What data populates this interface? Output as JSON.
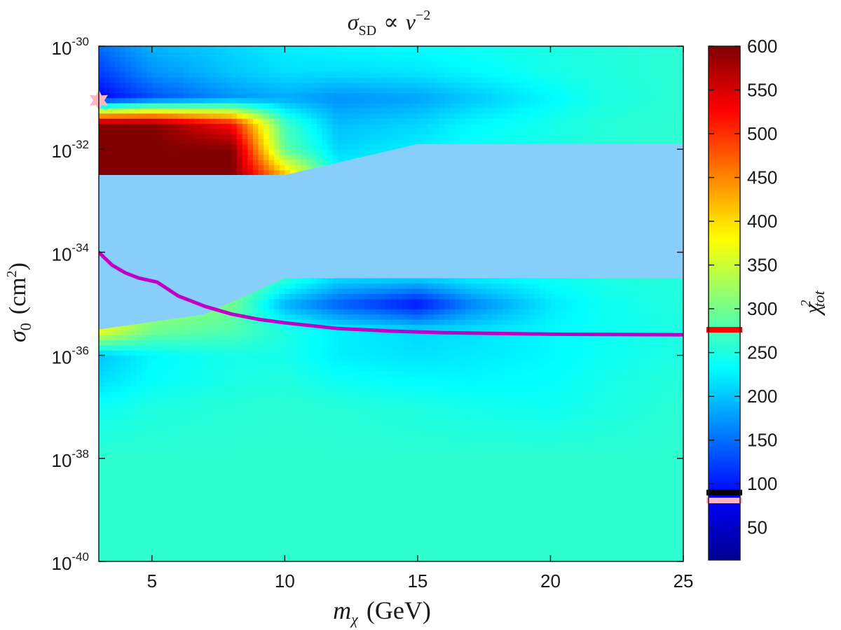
{
  "chart_data": {
    "type": "heatmap",
    "title": {
      "symbol": "σ",
      "subscript": "SD",
      "relation": "∝",
      "var": "v",
      "exponent": "−2"
    },
    "xlabel": {
      "symbol": "m",
      "subscript": "χ",
      "unit": "(GeV)"
    },
    "ylabel": {
      "symbol": "σ",
      "subscript": "0",
      "unit_open": "(cm",
      "unit_exp": "2",
      "unit_close": ")"
    },
    "colorbar_label": {
      "symbol": "χ",
      "superscript": "2",
      "subscript": "tot"
    },
    "xlim": [
      3,
      25
    ],
    "ylim_log10": [
      -40,
      -30
    ],
    "x_ticks": [
      5,
      10,
      15,
      20,
      25
    ],
    "x_tick_labels": [
      "5",
      "10",
      "15",
      "20",
      "25"
    ],
    "y_ticks_log10": [
      -40,
      -38,
      -36,
      -34,
      -32,
      -30
    ],
    "y_tick_base": "10",
    "y_tick_exponents": [
      "-40",
      "-38",
      "-36",
      "-34",
      "-32",
      "-30"
    ],
    "colorbar_range": [
      13,
      600
    ],
    "colorbar_ticks": [
      50,
      100,
      150,
      200,
      250,
      300,
      350,
      400,
      450,
      500,
      550,
      600
    ],
    "colorbar_tick_labels": [
      "50",
      "100",
      "150",
      "200",
      "250",
      "300",
      "350",
      "400",
      "450",
      "500",
      "550",
      "600"
    ],
    "colormap": "jet",
    "colorbar_markers": [
      {
        "value": 276,
        "color": "#ff0000"
      },
      {
        "value": 90,
        "color": "#000000"
      },
      {
        "value": 81,
        "color": "#ffb6c1"
      }
    ],
    "excluded_region_color": "#87cefa",
    "excluded_region": {
      "boundary_log10": [
        [
          3,
          -32.5
        ],
        [
          10,
          -32.5
        ],
        [
          15,
          -31.9
        ],
        [
          25,
          -31.9
        ],
        [
          25,
          -34.5
        ],
        [
          10,
          -34.5
        ],
        [
          7,
          -35.2
        ],
        [
          3,
          -35.5
        ]
      ]
    },
    "limit_curve": {
      "color": "#c000c8",
      "points_log10": [
        [
          3,
          -34.0
        ],
        [
          3.5,
          -34.25
        ],
        [
          4,
          -34.4
        ],
        [
          4.5,
          -34.5
        ],
        [
          5.2,
          -34.58
        ],
        [
          6,
          -34.85
        ],
        [
          7,
          -35.05
        ],
        [
          8,
          -35.2
        ],
        [
          9,
          -35.3
        ],
        [
          10,
          -35.37
        ],
        [
          12,
          -35.48
        ],
        [
          14,
          -35.53
        ],
        [
          16,
          -35.56
        ],
        [
          20,
          -35.59
        ],
        [
          25,
          -35.6
        ]
      ]
    },
    "best_fit": {
      "x": 3,
      "y_log10": -31.05,
      "color": "#ffb6c1",
      "marker": "star"
    },
    "chi2_field": {
      "x": [
        3,
        5,
        8,
        10,
        12,
        15,
        17,
        20,
        22,
        25
      ],
      "y_log10": [
        -40,
        -38,
        -37,
        -36.5,
        -36,
        -35.5,
        -35,
        -34.5,
        -34,
        -33.5,
        -33,
        -32.5,
        -32,
        -31.5,
        -31,
        -30.5,
        -30
      ],
      "values": [
        [
          260,
          260,
          260,
          260,
          260,
          260,
          260,
          260,
          260,
          260
        ],
        [
          260,
          260,
          260,
          260,
          260,
          260,
          260,
          260,
          260,
          260
        ],
        [
          240,
          250,
          255,
          258,
          255,
          250,
          245,
          240,
          248,
          258
        ],
        [
          215,
          235,
          248,
          252,
          240,
          232,
          230,
          235,
          245,
          255
        ],
        [
          200,
          230,
          245,
          245,
          225,
          218,
          222,
          230,
          240,
          250
        ],
        [
          380,
          300,
          280,
          250,
          225,
          210,
          215,
          230,
          240,
          250
        ],
        [
          310,
          330,
          300,
          190,
          140,
          95,
          160,
          220,
          240,
          252
        ],
        [
          260,
          290,
          320,
          260,
          215,
          210,
          225,
          240,
          248,
          255
        ],
        [
          262,
          268,
          275,
          270,
          262,
          262,
          262,
          262,
          262,
          262
        ],
        [
          262,
          265,
          268,
          265,
          262,
          262,
          262,
          262,
          262,
          262
        ],
        [
          262,
          265,
          270,
          300,
          265,
          262,
          262,
          262,
          262,
          262
        ],
        [
          600,
          600,
          600,
          420,
          235,
          242,
          250,
          255,
          258,
          260
        ],
        [
          600,
          600,
          600,
          290,
          210,
          225,
          238,
          248,
          255,
          260
        ],
        [
          600,
          600,
          520,
          270,
          195,
          210,
          230,
          245,
          255,
          260
        ],
        [
          85,
          130,
          170,
          185,
          170,
          180,
          200,
          230,
          248,
          258
        ],
        [
          120,
          170,
          200,
          215,
          215,
          220,
          230,
          245,
          252,
          258
        ],
        [
          150,
          190,
          210,
          225,
          230,
          235,
          240,
          248,
          252,
          258
        ]
      ]
    }
  }
}
